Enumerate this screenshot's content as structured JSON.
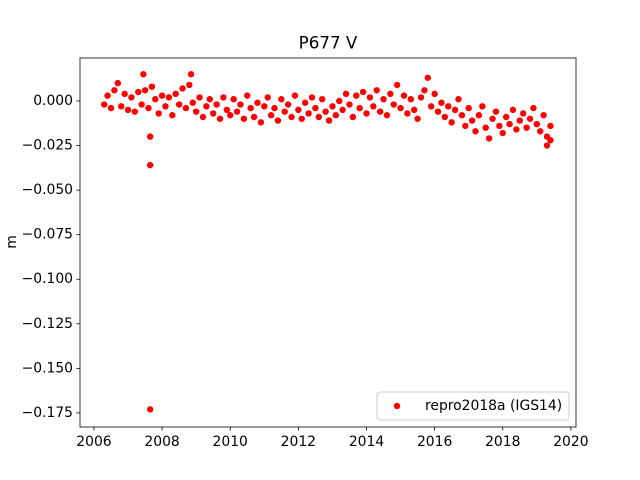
{
  "chart_data": {
    "type": "scatter",
    "title": "P677 V",
    "ylabel": "m",
    "x": [
      2006.3,
      2006.4,
      2006.5,
      2006.6,
      2006.7,
      2006.8,
      2006.9,
      2007.0,
      2007.1,
      2007.2,
      2007.3,
      2007.4,
      2007.5,
      2007.6,
      2007.7,
      2007.8,
      2007.9,
      2008.0,
      2008.1,
      2008.2,
      2008.3,
      2008.4,
      2008.5,
      2008.6,
      2008.7,
      2008.8,
      2008.9,
      2009.0,
      2009.1,
      2009.2,
      2009.3,
      2009.4,
      2009.5,
      2009.6,
      2009.7,
      2009.8,
      2009.9,
      2010.0,
      2010.1,
      2010.2,
      2010.3,
      2010.4,
      2010.5,
      2010.6,
      2010.7,
      2010.8,
      2010.9,
      2011.0,
      2011.1,
      2011.2,
      2011.3,
      2011.4,
      2011.5,
      2011.6,
      2011.7,
      2011.8,
      2011.9,
      2012.0,
      2012.1,
      2012.2,
      2012.3,
      2012.4,
      2012.5,
      2012.6,
      2012.7,
      2012.8,
      2012.9,
      2013.0,
      2013.1,
      2013.2,
      2013.3,
      2013.4,
      2013.5,
      2013.6,
      2013.7,
      2013.8,
      2013.9,
      2014.0,
      2014.1,
      2014.2,
      2014.3,
      2014.4,
      2014.5,
      2014.6,
      2014.7,
      2014.8,
      2014.9,
      2015.0,
      2015.1,
      2015.2,
      2015.3,
      2015.4,
      2015.5,
      2015.6,
      2015.7,
      2015.8,
      2015.9,
      2016.0,
      2016.1,
      2016.2,
      2016.3,
      2016.4,
      2016.5,
      2016.6,
      2016.7,
      2016.8,
      2016.9,
      2017.0,
      2017.1,
      2017.2,
      2017.3,
      2017.4,
      2017.5,
      2017.6,
      2017.7,
      2017.8,
      2017.9,
      2018.0,
      2018.1,
      2018.2,
      2018.3,
      2018.4,
      2018.5,
      2018.6,
      2018.7,
      2018.8,
      2018.9,
      2019.0,
      2019.1,
      2019.2,
      2019.3,
      2019.4,
      2007.45,
      2008.85,
      2007.65,
      2007.65,
      2007.65,
      2019.3,
      2019.4
    ],
    "series": [
      {
        "name": "repro2018a (IGS14)",
        "color": "#ff0000",
        "values": [
          -0.002,
          0.003,
          -0.004,
          0.006,
          0.01,
          -0.003,
          0.004,
          -0.005,
          0.002,
          -0.006,
          0.005,
          -0.002,
          0.006,
          -0.004,
          0.008,
          0.001,
          -0.007,
          0.003,
          -0.003,
          0.002,
          -0.008,
          0.004,
          -0.002,
          0.007,
          -0.004,
          0.009,
          -0.001,
          -0.006,
          0.002,
          -0.009,
          -0.003,
          0.001,
          -0.007,
          -0.002,
          -0.01,
          0.002,
          -0.005,
          -0.008,
          0.001,
          -0.006,
          -0.002,
          -0.01,
          0.003,
          -0.004,
          -0.009,
          -0.001,
          -0.012,
          -0.003,
          0.002,
          -0.008,
          -0.004,
          -0.011,
          0.001,
          -0.006,
          -0.002,
          -0.009,
          0.003,
          -0.005,
          -0.01,
          -0.001,
          -0.007,
          0.002,
          -0.004,
          -0.009,
          0.001,
          -0.006,
          -0.011,
          -0.003,
          -0.008,
          0.0,
          -0.005,
          0.004,
          -0.002,
          -0.009,
          0.003,
          -0.004,
          0.005,
          -0.007,
          0.002,
          -0.003,
          0.006,
          -0.006,
          0.001,
          -0.008,
          0.004,
          -0.002,
          0.009,
          -0.004,
          0.003,
          -0.007,
          0.001,
          -0.005,
          -0.01,
          0.002,
          0.006,
          0.013,
          -0.003,
          0.004,
          -0.006,
          -0.001,
          -0.009,
          -0.003,
          -0.012,
          -0.005,
          0.001,
          -0.008,
          -0.014,
          -0.004,
          -0.011,
          -0.017,
          -0.008,
          -0.003,
          -0.015,
          -0.021,
          -0.01,
          -0.006,
          -0.014,
          -0.018,
          -0.009,
          -0.013,
          -0.005,
          -0.016,
          -0.011,
          -0.007,
          -0.015,
          -0.01,
          -0.004,
          -0.013,
          -0.017,
          -0.008,
          -0.02,
          -0.014,
          0.015,
          0.015,
          -0.02,
          -0.036,
          -0.173,
          -0.025,
          -0.022
        ]
      }
    ],
    "xlim": [
      2005.59,
      2020.15
    ],
    "xticks": [
      2006,
      2008,
      2010,
      2012,
      2014,
      2016,
      2018,
      2020
    ],
    "ylim": [
      -0.1829,
      0.0241
    ],
    "yticks": [
      {
        "value": 0,
        "label": "0.000"
      },
      {
        "value": -0.025,
        "label": "−0.025"
      },
      {
        "value": -0.05,
        "label": "−0.050"
      },
      {
        "value": -0.075,
        "label": "−0.075"
      },
      {
        "value": -0.1,
        "label": "−0.100"
      },
      {
        "value": -0.125,
        "label": "−0.125"
      },
      {
        "value": -0.15,
        "label": "−0.150"
      },
      {
        "value": -0.175,
        "label": "−0.175"
      }
    ],
    "legend": "lower right"
  }
}
